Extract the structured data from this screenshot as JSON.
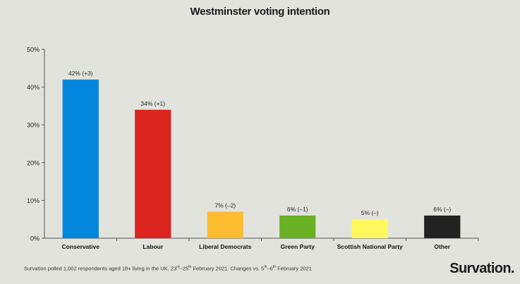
{
  "chart_data": {
    "type": "bar",
    "title": "Westminster voting intention",
    "categories": [
      "Conservative",
      "Labour",
      "Liberal Democrats",
      "Green Party",
      "Scottish National Party",
      "Other"
    ],
    "values": [
      42,
      34,
      7,
      6,
      5,
      6
    ],
    "data_labels": [
      "42% (+3)",
      "34% (+1)",
      "7% (–2)",
      "6% (–1)",
      "5% (–)",
      "6% (–)"
    ],
    "colors": [
      "#0087dc",
      "#dc241f",
      "#fdbb30",
      "#6ab023",
      "#fff95d",
      "#222222"
    ],
    "ylim": [
      0,
      50
    ],
    "yticks": [
      0,
      10,
      20,
      30,
      40,
      50
    ],
    "ytick_labels": [
      "0%",
      "10%",
      "20%",
      "30%",
      "40%",
      "50%"
    ],
    "xlabel": "",
    "ylabel": "",
    "grid": false
  },
  "footnote": {
    "part1": "Survation polled 1,002 respondents aged 18+ living in the UK, 23",
    "sup1": "rd",
    "part2": "–25",
    "sup2": "th",
    "part3": " February 2021. Changes vs. 5",
    "sup3": "th",
    "part4": "–6",
    "sup4": "th",
    "part5": " February 2021"
  },
  "brand": "Survation."
}
